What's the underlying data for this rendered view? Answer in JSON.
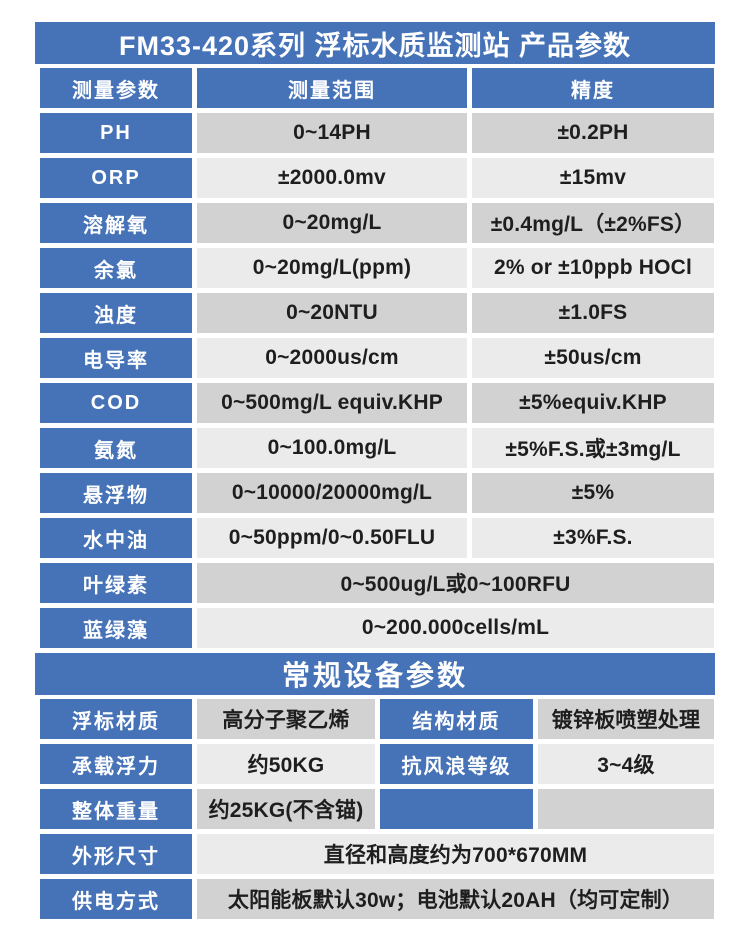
{
  "title": "FM33-420系列 浮标水质监测站 产品参数",
  "colors": {
    "accent_blue": "#4673b8",
    "row_dark_gray": "#d2d2d2",
    "row_light_gray": "#ebebeb",
    "text": "#1e1e1e",
    "header_text": "#ffffff"
  },
  "measurement_table": {
    "headers": {
      "param": "测量参数",
      "range": "测量范围",
      "accuracy": "精度"
    },
    "rows": [
      {
        "param": "PH",
        "range": "0~14PH",
        "accuracy": "±0.2PH"
      },
      {
        "param": "ORP",
        "range": "±2000.0mv",
        "accuracy": "±15mv"
      },
      {
        "param": "溶解氧",
        "range": "0~20mg/L",
        "accuracy": "±0.4mg/L（±2%FS）"
      },
      {
        "param": "余氯",
        "range": "0~20mg/L(ppm)",
        "accuracy": "2% or ±10ppb HOCl"
      },
      {
        "param": "浊度",
        "range": "0~20NTU",
        "accuracy": "±1.0FS"
      },
      {
        "param": "电导率",
        "range": "0~2000us/cm",
        "accuracy": "±50us/cm"
      },
      {
        "param": "COD",
        "range": "0~500mg/L equiv.KHP",
        "accuracy": "±5%equiv.KHP"
      },
      {
        "param": "氨氮",
        "range": "0~100.0mg/L",
        "accuracy": "±5%F.S.或±3mg/L"
      },
      {
        "param": "悬浮物",
        "range": "0~10000/20000mg/L",
        "accuracy": "±5%"
      },
      {
        "param": "水中油",
        "range": "0~50ppm/0~0.50FLU",
        "accuracy": "±3%F.S."
      },
      {
        "param": "叶绿素",
        "merged": "0~500ug/L或0~100RFU"
      },
      {
        "param": "蓝绿藻",
        "merged": "0~200.000cells/mL"
      }
    ]
  },
  "device_table": {
    "section_title": "常规设备参数",
    "rows": [
      {
        "label1": "浮标材质",
        "value1": "高分子聚乙烯",
        "label2": "结构材质",
        "value2": "镀锌板喷塑处理"
      },
      {
        "label1": "承载浮力",
        "value1": "约50KG",
        "label2": "抗风浪等级",
        "value2": "3~4级"
      },
      {
        "label1": "整体重量",
        "value1": "约25KG(不含锚)"
      },
      {
        "label1": "外形尺寸",
        "value1": "直径和高度约为700*670MM"
      },
      {
        "label1": "供电方式",
        "value1": "太阳能板默认30w；电池默认20AH（均可定制）"
      }
    ]
  }
}
